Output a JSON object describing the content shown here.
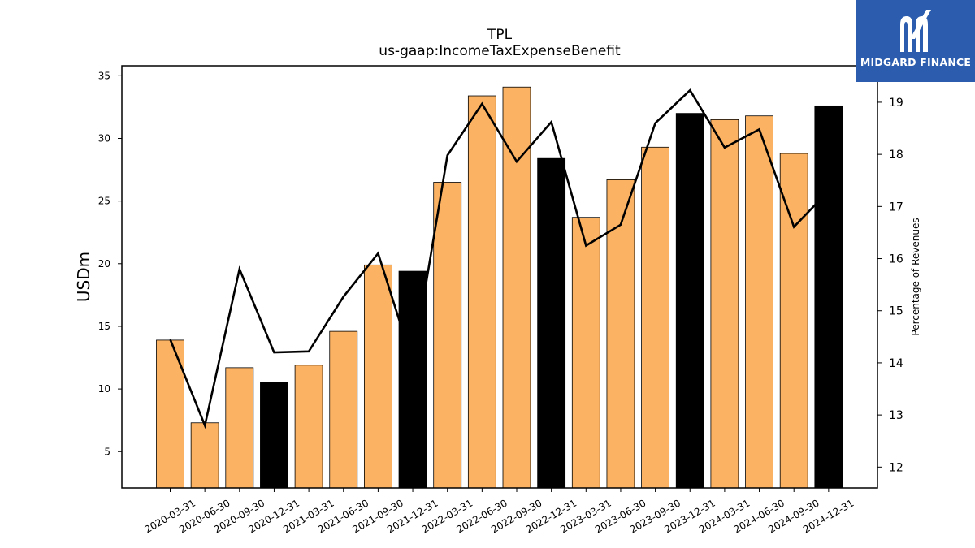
{
  "chart_data": {
    "type": "bar",
    "title": "TPL",
    "subtitle": "us-gaap:IncomeTaxExpenseBenefit",
    "ylabel": "USDm",
    "y2label": "Percentage of Revenues",
    "categories": [
      "2020-03-31",
      "2020-06-30",
      "2020-09-30",
      "2020-12-31",
      "2021-03-31",
      "2021-06-30",
      "2021-09-30",
      "2021-12-31",
      "2022-03-31",
      "2022-06-30",
      "2022-09-30",
      "2022-12-31",
      "2023-03-31",
      "2023-06-30",
      "2023-09-30",
      "2023-12-31",
      "2024-03-31",
      "2024-06-30",
      "2024-09-30",
      "2024-12-31"
    ],
    "series": [
      {
        "type": "bar",
        "values": [
          13.9,
          7.3,
          11.7,
          10.5,
          11.9,
          14.6,
          19.9,
          19.4,
          26.5,
          33.4,
          34.1,
          28.4,
          23.7,
          26.7,
          29.3,
          32.0,
          31.5,
          31.8,
          28.8,
          32.6
        ]
      },
      {
        "type": "line",
        "axis": "right",
        "values": [
          14.45,
          12.8,
          15.8,
          14.2,
          14.22,
          15.27,
          16.1,
          14.0,
          17.98,
          18.97,
          17.86,
          18.62,
          16.25,
          16.65,
          18.6,
          19.23,
          18.13,
          18.48,
          16.61,
          17.3
        ]
      }
    ],
    "highlight_categories": [
      "2020-12-31",
      "2021-12-31",
      "2022-12-31",
      "2023-12-31",
      "2024-12-31"
    ],
    "bar_color": "#fbb263",
    "highlight_color": "#000000",
    "line_color": "#000000",
    "ylim": [
      2.1,
      35.8
    ],
    "yticks": [
      5,
      10,
      15,
      20,
      25,
      30,
      35
    ],
    "y2lim": [
      11.6,
      19.7
    ],
    "y2ticks": [
      12,
      13,
      14,
      15,
      16,
      17,
      18,
      19
    ],
    "grid": false
  },
  "logo": {
    "text": "MIDGARD FINANCE",
    "background": "#2b5cad"
  }
}
